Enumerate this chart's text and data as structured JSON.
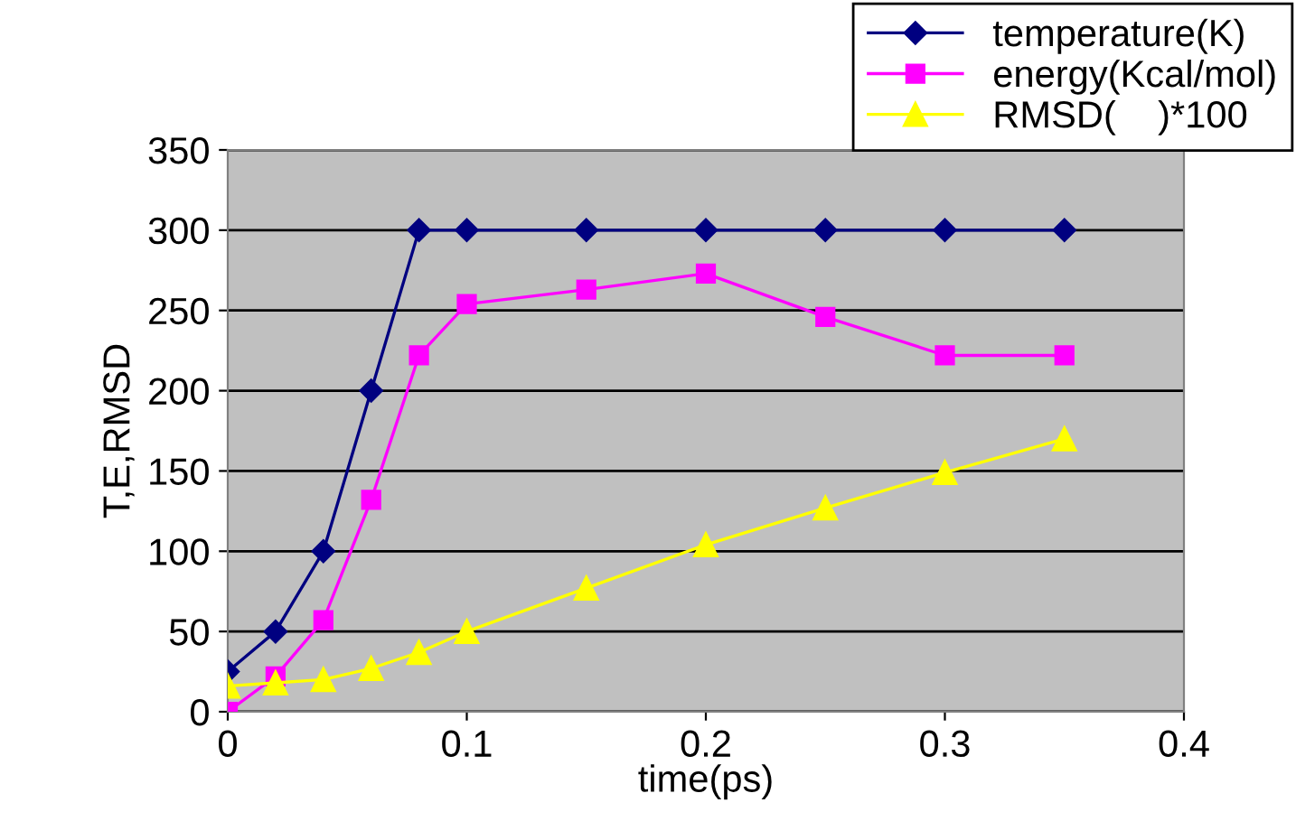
{
  "chart_data": {
    "type": "line",
    "xlabel": "time(ps)",
    "ylabel": "T,E,RMSD",
    "x": [
      0,
      0.02,
      0.04,
      0.06,
      0.08,
      0.1,
      0.15,
      0.2,
      0.25,
      0.3,
      0.35
    ],
    "series": [
      {
        "name": "temperature(K)",
        "color": "#000080",
        "marker": "diamond",
        "values": [
          25,
          50,
          100,
          200,
          300,
          300,
          300,
          300,
          300,
          300,
          300
        ]
      },
      {
        "name": "energy(Kcal/mol)",
        "color": "#ff00ff",
        "marker": "square",
        "values": [
          0,
          22,
          57,
          132,
          222,
          254,
          263,
          273,
          246,
          222,
          222
        ]
      },
      {
        "name": "RMSD(    )*100",
        "color": "#ffff00",
        "marker": "triangle",
        "values": [
          16,
          18,
          20,
          27,
          37,
          50,
          77,
          104,
          127,
          149,
          170
        ]
      }
    ],
    "xlim": [
      0,
      0.4
    ],
    "xticks": [
      0,
      0.1,
      0.2,
      0.3,
      0.4
    ],
    "ylim": [
      0,
      350
    ],
    "yticks": [
      0,
      50,
      100,
      150,
      200,
      250,
      300,
      350
    ],
    "grid": "y",
    "legend": "top right",
    "line_style": "solid"
  }
}
